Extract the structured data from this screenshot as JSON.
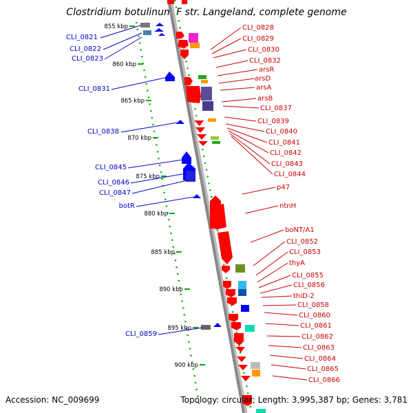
{
  "title": "Clostridium botulinum F str. Langeland, complete genome",
  "footer": {
    "accession": "Accession: NC_009699",
    "topology": "Topology: circular; Length: 3,995,387 bp; Genes: 3,781"
  },
  "colors": {
    "forward": "#ff0000",
    "reverse": "#0000ff",
    "backbone": "#888888",
    "dots": "#00aa00",
    "left_label": "#0000cc",
    "right_label": "#cc0000"
  },
  "ticks": [
    {
      "label": "855 kbp"
    },
    {
      "label": "860 kbp"
    },
    {
      "label": "865 kbp"
    },
    {
      "label": "870 kbp"
    },
    {
      "label": "875 kbp"
    },
    {
      "label": "880 kbp"
    },
    {
      "label": "885 kbp"
    },
    {
      "label": "890 kbp"
    },
    {
      "label": "895 kbp"
    },
    {
      "label": "900 kbp"
    }
  ],
  "left_labels": [
    {
      "text": "CLI_0821"
    },
    {
      "text": "CLI_0822"
    },
    {
      "text": "CLI_0823"
    },
    {
      "text": "CLI_0831"
    },
    {
      "text": "CLI_0838"
    },
    {
      "text": "CLI_0845"
    },
    {
      "text": "CLI_0846"
    },
    {
      "text": "CLI_0847"
    },
    {
      "text": "botR"
    },
    {
      "text": "CLI_0859"
    }
  ],
  "right_labels": [
    {
      "text": "CLI_0828"
    },
    {
      "text": "CLI_0829"
    },
    {
      "text": "CLI_0830"
    },
    {
      "text": "CLI_0832"
    },
    {
      "text": "arsR"
    },
    {
      "text": "arsD"
    },
    {
      "text": "arsA"
    },
    {
      "text": "arsB"
    },
    {
      "text": "CLI_0837"
    },
    {
      "text": "CLI_0839"
    },
    {
      "text": "CLI_0840"
    },
    {
      "text": "CLI_0841"
    },
    {
      "text": "CLI_0842"
    },
    {
      "text": "CLI_0843"
    },
    {
      "text": "CLI_0844"
    },
    {
      "text": "p47"
    },
    {
      "text": "ntnH"
    },
    {
      "text": "boNT/A1"
    },
    {
      "text": "CLI_0852"
    },
    {
      "text": "CLI_0853"
    },
    {
      "text": "thyA"
    },
    {
      "text": "CLI_0855"
    },
    {
      "text": "CLI_0856"
    },
    {
      "text": "thiD-2"
    },
    {
      "text": "CLI_0858"
    },
    {
      "text": "CLI_0860"
    },
    {
      "text": "CLI_0861"
    },
    {
      "text": "CLI_0862"
    },
    {
      "text": "CLI_0863"
    },
    {
      "text": "CLI_0864"
    },
    {
      "text": "CLI_0865"
    },
    {
      "text": "CLI_0866"
    }
  ]
}
